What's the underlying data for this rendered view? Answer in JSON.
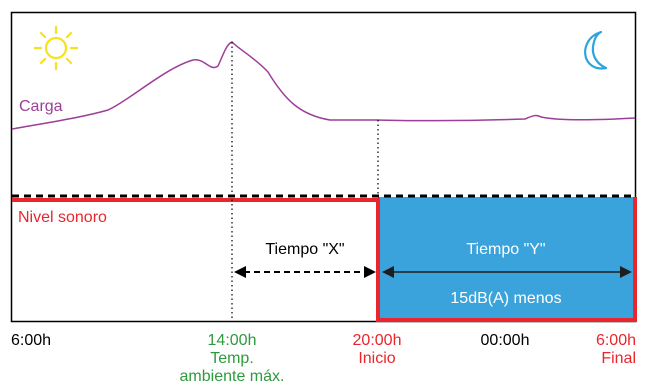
{
  "labels": {
    "load": "Carga",
    "noise": "Nivel sonoro",
    "time_x": "Tiempo \"X\"",
    "time_y": "Tiempo \"Y\"",
    "reduction": "15dB(A) menos"
  },
  "axis": {
    "t0": "6:00h",
    "t1": "14:00h",
    "t1_note1": "Temp.",
    "t1_note2": "ambiente máx.",
    "t2": "20:00h",
    "t2_note": "Inicio",
    "t3": "00:00h",
    "t4": "6:00h",
    "t4_note": "Final"
  },
  "icons": [
    "sun-icon",
    "moon-icon"
  ],
  "colors": {
    "load_curve": "#9b3f98",
    "noise_line": "#e8262c",
    "night_zone": "#3ba3db",
    "green_label": "#2e9a3e",
    "red_label": "#e8262c",
    "sun": "#f6e21a",
    "moon": "#2ba5de"
  }
}
